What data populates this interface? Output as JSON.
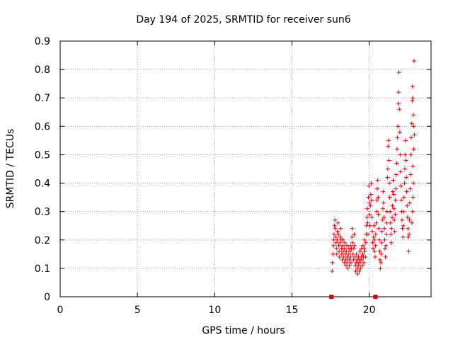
{
  "chart_data": {
    "type": "scatter",
    "title": "Day 194 of 2025, SRMTID for receiver sun6",
    "xlabel": "GPS time / hours",
    "ylabel": "SRMTID / TECUs",
    "xlim": [
      0,
      24
    ],
    "ylim": [
      0,
      0.9
    ],
    "xticks": [
      0,
      5,
      10,
      15,
      20
    ],
    "yticks": [
      0,
      0.1,
      0.2,
      0.3,
      0.4,
      0.5,
      0.6,
      0.7,
      0.8,
      0.9
    ],
    "xtick_labels": [
      "0",
      "5",
      "10",
      "15",
      "20"
    ],
    "ytick_labels": [
      "0",
      "0.1",
      "0.2",
      "0.3",
      "0.4",
      "0.5",
      "0.6",
      "0.7",
      "0.8",
      "0.9"
    ],
    "grid": true,
    "marker": "+",
    "color": "#e00000",
    "zero_markers": [
      {
        "x": 17.55,
        "y": 0
      },
      {
        "x": 20.4,
        "y": 0
      }
    ],
    "series": [
      {
        "name": "SRMTID",
        "points": [
          [
            17.6,
            0.09
          ],
          [
            17.62,
            0.12
          ],
          [
            17.65,
            0.15
          ],
          [
            17.68,
            0.18
          ],
          [
            17.7,
            0.2
          ],
          [
            17.72,
            0.22
          ],
          [
            17.75,
            0.25
          ],
          [
            17.78,
            0.27
          ],
          [
            17.8,
            0.24
          ],
          [
            17.82,
            0.21
          ],
          [
            17.85,
            0.19
          ],
          [
            17.88,
            0.17
          ],
          [
            17.9,
            0.15
          ],
          [
            17.92,
            0.2
          ],
          [
            17.95,
            0.23
          ],
          [
            17.98,
            0.26
          ],
          [
            18.0,
            0.22
          ],
          [
            18.02,
            0.18
          ],
          [
            18.05,
            0.16
          ],
          [
            18.08,
            0.14
          ],
          [
            18.1,
            0.19
          ],
          [
            18.12,
            0.21
          ],
          [
            18.15,
            0.24
          ],
          [
            18.18,
            0.2
          ],
          [
            18.2,
            0.17
          ],
          [
            18.22,
            0.15
          ],
          [
            18.25,
            0.13
          ],
          [
            18.28,
            0.18
          ],
          [
            18.3,
            0.2
          ],
          [
            18.32,
            0.16
          ],
          [
            18.35,
            0.14
          ],
          [
            18.38,
            0.12
          ],
          [
            18.4,
            0.17
          ],
          [
            18.42,
            0.19
          ],
          [
            18.45,
            0.15
          ],
          [
            18.48,
            0.13
          ],
          [
            18.5,
            0.11
          ],
          [
            18.52,
            0.16
          ],
          [
            18.55,
            0.18
          ],
          [
            18.58,
            0.14
          ],
          [
            18.6,
            0.12
          ],
          [
            18.62,
            0.1
          ],
          [
            18.65,
            0.15
          ],
          [
            18.68,
            0.17
          ],
          [
            18.7,
            0.13
          ],
          [
            18.72,
            0.11
          ],
          [
            18.75,
            0.16
          ],
          [
            18.78,
            0.18
          ],
          [
            18.8,
            0.14
          ],
          [
            18.82,
            0.12
          ],
          [
            18.85,
            0.17
          ],
          [
            18.88,
            0.21
          ],
          [
            18.9,
            0.24
          ],
          [
            18.92,
            0.19
          ],
          [
            18.95,
            0.15
          ],
          [
            18.98,
            0.13
          ],
          [
            19.0,
            0.17
          ],
          [
            19.02,
            0.22
          ],
          [
            19.05,
            0.18
          ],
          [
            19.08,
            0.14
          ],
          [
            19.1,
            0.11
          ],
          [
            19.12,
            0.09
          ],
          [
            19.15,
            0.12
          ],
          [
            19.18,
            0.15
          ],
          [
            19.2,
            0.13
          ],
          [
            19.22,
            0.1
          ],
          [
            19.25,
            0.08
          ],
          [
            19.28,
            0.12
          ],
          [
            19.3,
            0.14
          ],
          [
            19.32,
            0.11
          ],
          [
            19.35,
            0.09
          ],
          [
            19.38,
            0.13
          ],
          [
            19.4,
            0.16
          ],
          [
            19.42,
            0.12
          ],
          [
            19.45,
            0.1
          ],
          [
            19.48,
            0.14
          ],
          [
            19.5,
            0.17
          ],
          [
            19.52,
            0.13
          ],
          [
            19.55,
            0.11
          ],
          [
            19.58,
            0.15
          ],
          [
            19.6,
            0.18
          ],
          [
            19.62,
            0.14
          ],
          [
            19.65,
            0.12
          ],
          [
            19.68,
            0.17
          ],
          [
            19.7,
            0.2
          ],
          [
            19.72,
            0.16
          ],
          [
            19.75,
            0.14
          ],
          [
            19.78,
            0.19
          ],
          [
            19.8,
            0.22
          ],
          [
            19.82,
            0.25
          ],
          [
            19.85,
            0.28
          ],
          [
            19.88,
            0.31
          ],
          [
            19.9,
            0.26
          ],
          [
            19.92,
            0.22
          ],
          [
            19.95,
            0.35
          ],
          [
            19.98,
            0.39
          ],
          [
            20.0,
            0.33
          ],
          [
            20.02,
            0.29
          ],
          [
            20.05,
            0.25
          ],
          [
            20.08,
            0.32
          ],
          [
            20.1,
            0.36
          ],
          [
            20.12,
            0.4
          ],
          [
            20.15,
            0.34
          ],
          [
            20.18,
            0.28
          ],
          [
            20.2,
            0.23
          ],
          [
            20.22,
            0.19
          ],
          [
            20.25,
            0.17
          ],
          [
            20.28,
            0.21
          ],
          [
            20.3,
            0.25
          ],
          [
            20.32,
            0.2
          ],
          [
            20.35,
            0.16
          ],
          [
            20.38,
            0.14
          ],
          [
            20.4,
            0.18
          ],
          [
            20.42,
            0.22
          ],
          [
            20.45,
            0.26
          ],
          [
            20.48,
            0.3
          ],
          [
            20.5,
            0.34
          ],
          [
            20.52,
            0.38
          ],
          [
            20.55,
            0.41
          ],
          [
            20.58,
            0.35
          ],
          [
            20.6,
            0.29
          ],
          [
            20.62,
            0.24
          ],
          [
            20.65,
            0.2
          ],
          [
            20.68,
            0.16
          ],
          [
            20.7,
            0.13
          ],
          [
            20.72,
            0.1
          ],
          [
            20.75,
            0.12
          ],
          [
            20.78,
            0.15
          ],
          [
            20.8,
            0.19
          ],
          [
            20.82,
            0.23
          ],
          [
            20.85,
            0.27
          ],
          [
            20.88,
            0.31
          ],
          [
            20.9,
            0.37
          ],
          [
            20.92,
            0.33
          ],
          [
            20.95,
            0.28
          ],
          [
            20.98,
            0.24
          ],
          [
            21.0,
            0.2
          ],
          [
            21.02,
            0.17
          ],
          [
            21.05,
            0.14
          ],
          [
            21.08,
            0.18
          ],
          [
            21.1,
            0.22
          ],
          [
            21.12,
            0.26
          ],
          [
            21.15,
            0.3
          ],
          [
            21.18,
            0.42
          ],
          [
            21.2,
            0.45
          ],
          [
            21.22,
            0.53
          ],
          [
            21.25,
            0.55
          ],
          [
            21.28,
            0.48
          ],
          [
            21.3,
            0.4
          ],
          [
            21.32,
            0.35
          ],
          [
            21.35,
            0.3
          ],
          [
            21.38,
            0.26
          ],
          [
            21.4,
            0.22
          ],
          [
            21.42,
            0.19
          ],
          [
            21.45,
            0.24
          ],
          [
            21.48,
            0.28
          ],
          [
            21.5,
            0.32
          ],
          [
            21.52,
            0.37
          ],
          [
            21.55,
            0.41
          ],
          [
            21.58,
            0.36
          ],
          [
            21.6,
            0.31
          ],
          [
            21.62,
            0.27
          ],
          [
            21.65,
            0.23
          ],
          [
            21.68,
            0.29
          ],
          [
            21.7,
            0.34
          ],
          [
            21.72,
            0.38
          ],
          [
            21.75,
            0.43
          ],
          [
            21.78,
            0.47
          ],
          [
            21.8,
            0.52
          ],
          [
            21.82,
            0.56
          ],
          [
            21.85,
            0.6
          ],
          [
            21.88,
            0.68
          ],
          [
            21.9,
            0.72
          ],
          [
            21.92,
            0.79
          ],
          [
            21.95,
            0.66
          ],
          [
            21.98,
            0.58
          ],
          [
            22.0,
            0.5
          ],
          [
            22.02,
            0.44
          ],
          [
            22.05,
            0.39
          ],
          [
            22.08,
            0.34
          ],
          [
            22.1,
            0.3
          ],
          [
            22.12,
            0.27
          ],
          [
            22.15,
            0.24
          ],
          [
            22.18,
            0.21
          ],
          [
            22.2,
            0.25
          ],
          [
            22.22,
            0.3
          ],
          [
            22.25,
            0.35
          ],
          [
            22.28,
            0.4
          ],
          [
            22.3,
            0.45
          ],
          [
            22.32,
            0.5
          ],
          [
            22.35,
            0.55
          ],
          [
            22.38,
            0.48
          ],
          [
            22.4,
            0.42
          ],
          [
            22.42,
            0.37
          ],
          [
            22.45,
            0.32
          ],
          [
            22.48,
            0.28
          ],
          [
            22.5,
            0.24
          ],
          [
            22.52,
            0.21
          ],
          [
            22.55,
            0.16
          ],
          [
            22.58,
            0.22
          ],
          [
            22.6,
            0.27
          ],
          [
            22.62,
            0.33
          ],
          [
            22.65,
            0.38
          ],
          [
            22.68,
            0.43
          ],
          [
            22.7,
            0.5
          ],
          [
            22.72,
            0.56
          ],
          [
            22.75,
            0.61
          ],
          [
            22.78,
            0.69
          ],
          [
            22.8,
            0.74
          ],
          [
            22.82,
            0.7
          ],
          [
            22.85,
            0.64
          ],
          [
            22.88,
            0.6
          ],
          [
            22.9,
            0.83
          ],
          [
            22.92,
            0.57
          ],
          [
            22.88,
            0.52
          ],
          [
            22.82,
            0.46
          ],
          [
            22.86,
            0.4
          ],
          [
            22.84,
            0.35
          ],
          [
            22.8,
            0.3
          ],
          [
            22.76,
            0.26
          ]
        ]
      }
    ]
  }
}
